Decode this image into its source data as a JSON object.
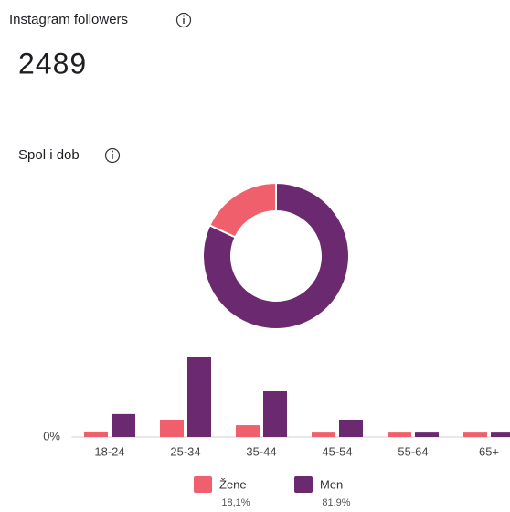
{
  "header": {
    "title": "Instagram followers",
    "count": "2489"
  },
  "section": {
    "title": "Spol i dob"
  },
  "chart_data": [
    {
      "type": "donut",
      "categories": [
        "Žene",
        "Men"
      ],
      "values": [
        18.1,
        81.9
      ],
      "value_labels": [
        "18,1%",
        "81,9%"
      ],
      "colors": [
        "#f0606c",
        "#6b2a6f"
      ]
    },
    {
      "type": "bar",
      "categories": [
        "18-24",
        "25-34",
        "35-44",
        "45-54",
        "55-64",
        "65+"
      ],
      "series": [
        {
          "color": "#f0606c",
          "values": [
            2.5,
            7.8,
            5.3,
            2,
            2,
            2
          ]
        },
        {
          "color": "#6b2a6f",
          "values": [
            10.3,
            35.7,
            20.5,
            7.8,
            2,
            2
          ]
        }
      ],
      "ylim": [
        0,
        40
      ],
      "yticks": [
        {
          "value": 0,
          "label": "0%"
        }
      ]
    }
  ]
}
